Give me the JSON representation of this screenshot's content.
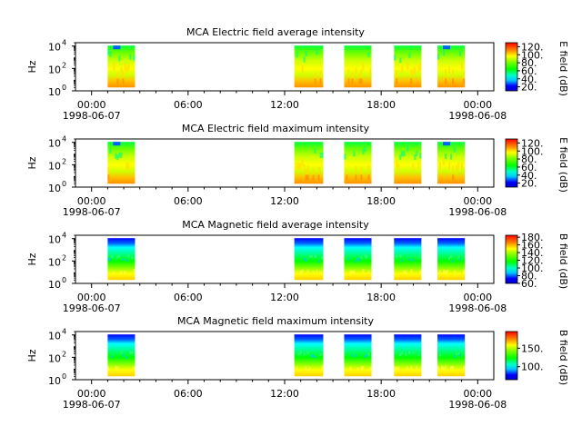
{
  "chart_data": [
    {
      "type": "heatmap",
      "title": "MCA  Electric field average intensity",
      "ylabel": "Hz",
      "yscale": "log",
      "ylim": [
        1,
        20000
      ],
      "y_ticks": [
        {
          "base": "10",
          "exp": "0"
        },
        {
          "base": "10",
          "exp": "2"
        },
        {
          "base": "10",
          "exp": "4"
        }
      ],
      "x_ticks": [
        "00:00",
        "06:00",
        "12:00",
        "18:00",
        "00:00"
      ],
      "x_dates": [
        "1998-06-07",
        "1998-06-08"
      ],
      "xlim_hours": [
        -1,
        25
      ],
      "segments_hours": [
        [
          1.0,
          2.7
        ],
        [
          12.6,
          14.4
        ],
        [
          15.7,
          17.4
        ],
        [
          18.8,
          20.5
        ],
        [
          21.5,
          23.2
        ]
      ],
      "colorbar": {
        "label": "E field (dB)",
        "range": [
          10,
          130
        ],
        "ticks": [
          "20.",
          "40.",
          "60.",
          "80.",
          "100.",
          "120."
        ],
        "style": "electric"
      }
    },
    {
      "type": "heatmap",
      "title": "MCA  Electric field maximum intensity",
      "ylabel": "Hz",
      "yscale": "log",
      "ylim": [
        1,
        20000
      ],
      "y_ticks": [
        {
          "base": "10",
          "exp": "0"
        },
        {
          "base": "10",
          "exp": "2"
        },
        {
          "base": "10",
          "exp": "4"
        }
      ],
      "x_ticks": [
        "00:00",
        "06:00",
        "12:00",
        "18:00",
        "00:00"
      ],
      "x_dates": [
        "1998-06-07",
        "1998-06-08"
      ],
      "xlim_hours": [
        -1,
        25
      ],
      "segments_hours": [
        [
          1.0,
          2.7
        ],
        [
          12.6,
          14.4
        ],
        [
          15.7,
          17.4
        ],
        [
          18.8,
          20.5
        ],
        [
          21.5,
          23.2
        ]
      ],
      "colorbar": {
        "label": "E field (dB)",
        "range": [
          10,
          130
        ],
        "ticks": [
          "20.",
          "40.",
          "60.",
          "80.",
          "100.",
          "120."
        ],
        "style": "electric"
      }
    },
    {
      "type": "heatmap",
      "title": "MCA  Magnetic field average intensity",
      "ylabel": "Hz",
      "yscale": "log",
      "ylim": [
        1,
        20000
      ],
      "y_ticks": [
        {
          "base": "10",
          "exp": "0"
        },
        {
          "base": "10",
          "exp": "2"
        },
        {
          "base": "10",
          "exp": "4"
        }
      ],
      "x_ticks": [
        "00:00",
        "06:00",
        "12:00",
        "18:00",
        "00:00"
      ],
      "x_dates": [
        "1998-06-07",
        "1998-06-08"
      ],
      "xlim_hours": [
        -1,
        25
      ],
      "segments_hours": [
        [
          1.0,
          2.7
        ],
        [
          12.6,
          14.4
        ],
        [
          15.7,
          17.4
        ],
        [
          18.8,
          20.5
        ],
        [
          21.5,
          23.2
        ]
      ],
      "colorbar": {
        "label": "B field (dB)",
        "range": [
          60,
          185
        ],
        "ticks": [
          "60.",
          "80.",
          "100.",
          "120.",
          "140.",
          "160.",
          "180."
        ],
        "style": "magnetic"
      }
    },
    {
      "type": "heatmap",
      "title": "MCA  Magnetic field maximum intensity",
      "ylabel": "Hz",
      "yscale": "log",
      "ylim": [
        1,
        20000
      ],
      "y_ticks": [
        {
          "base": "10",
          "exp": "0"
        },
        {
          "base": "10",
          "exp": "2"
        },
        {
          "base": "10",
          "exp": "4"
        }
      ],
      "x_ticks": [
        "00:00",
        "06:00",
        "12:00",
        "18:00",
        "00:00"
      ],
      "x_dates": [
        "1998-06-07",
        "1998-06-08"
      ],
      "xlim_hours": [
        -1,
        25
      ],
      "segments_hours": [
        [
          1.0,
          2.7
        ],
        [
          12.6,
          14.4
        ],
        [
          15.7,
          17.4
        ],
        [
          18.8,
          20.5
        ],
        [
          21.5,
          23.2
        ]
      ],
      "colorbar": {
        "label": "B field (dB)",
        "range": [
          65,
          195
        ],
        "ticks": [
          "100.",
          "150."
        ],
        "style": "magnetic"
      }
    }
  ]
}
